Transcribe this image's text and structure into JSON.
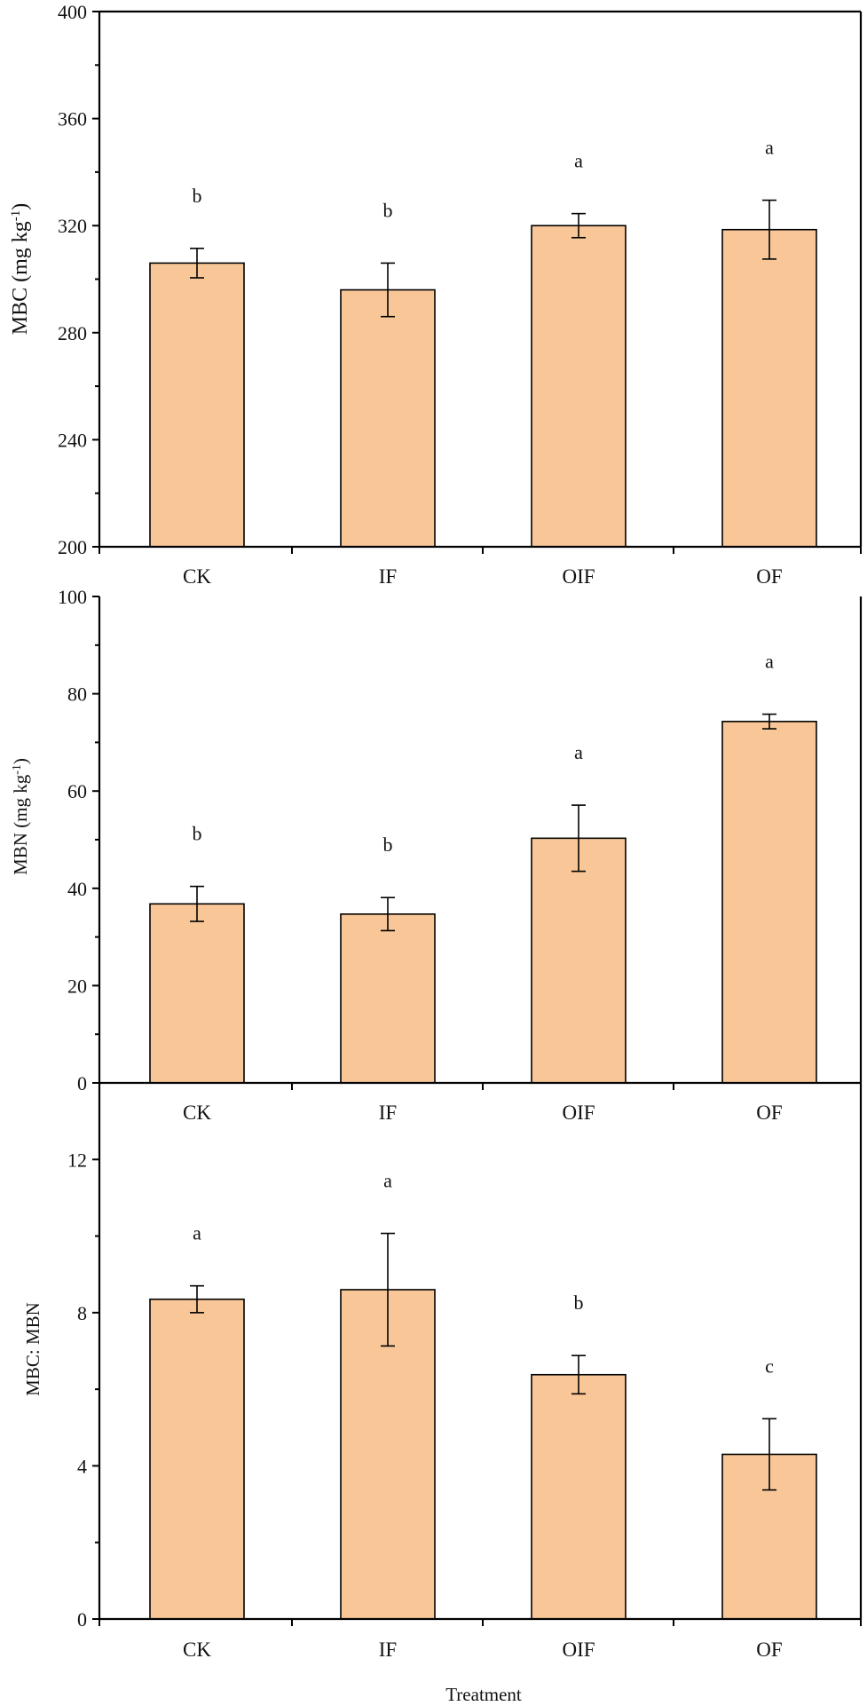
{
  "chart_data": [
    {
      "type": "bar",
      "title": "",
      "xlabel": "",
      "ylabel": "MBC (mg kg",
      "ylabel_sup": "-1",
      "ylabel_close": ")",
      "categories": [
        "CK",
        "IF",
        "OIF",
        "OF"
      ],
      "values": [
        306,
        296,
        320,
        318.5
      ],
      "errors": [
        5.5,
        10,
        4.5,
        11
      ],
      "significance": [
        "b",
        "b",
        "a",
        "a"
      ],
      "ylim": [
        200,
        400
      ],
      "yticks": [
        200,
        240,
        280,
        320,
        360,
        400
      ],
      "bar_color": "#f9c797"
    },
    {
      "type": "bar",
      "title": "",
      "xlabel": "",
      "ylabel": "MBN (mg kg",
      "ylabel_sup": "-1",
      "ylabel_close": ")",
      "categories": [
        "CK",
        "IF",
        "OIF",
        "OF"
      ],
      "values": [
        36.8,
        34.7,
        50.3,
        74.3
      ],
      "errors": [
        3.6,
        3.4,
        6.8,
        1.5
      ],
      "significance": [
        "b",
        "b",
        "a",
        "a"
      ],
      "ylim": [
        0,
        100
      ],
      "yticks": [
        0,
        20,
        40,
        60,
        80,
        100
      ],
      "bar_color": "#f9c797"
    },
    {
      "type": "bar",
      "title": "",
      "xlabel": "Treatment",
      "ylabel": "MBC: MBN",
      "ylabel_sup": "",
      "ylabel_close": "",
      "categories": [
        "CK",
        "IF",
        "OIF",
        "OF"
      ],
      "values": [
        8.35,
        8.6,
        6.38,
        4.3
      ],
      "errors": [
        0.35,
        1.47,
        0.5,
        0.93
      ],
      "significance": [
        "a",
        "a",
        "b",
        "c"
      ],
      "ylim": [
        0,
        14
      ],
      "yticks": [
        0,
        4,
        8,
        12
      ],
      "bar_color": "#f9c797"
    }
  ]
}
